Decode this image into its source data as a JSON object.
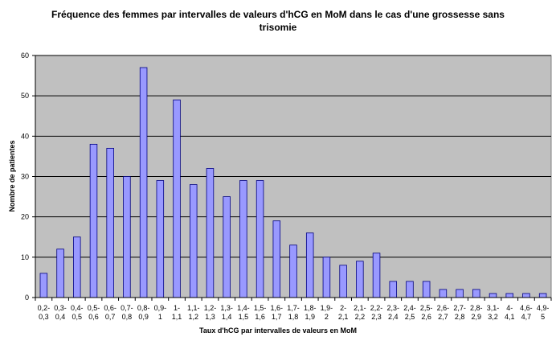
{
  "chart_data": {
    "type": "bar",
    "title_lines": [
      "Fréquence des femmes par intervalles de valeurs d'hCG en MoM dans le cas d'une grossesse sans",
      "trisomie"
    ],
    "xlabel": "Taux d'hCG par intervalles de valeurs en MoM",
    "ylabel": "Nombre de patientes",
    "ylim": [
      0,
      60
    ],
    "yticks": [
      "0",
      "10",
      "20",
      "30",
      "40",
      "50",
      "60"
    ],
    "grid": true,
    "legend": "none",
    "colors": {
      "bar": "#9999ff",
      "bar_stroke": "#000080",
      "plot_bg": "#c0c0c0",
      "grid": "#000000"
    },
    "categories": [
      [
        "0,2-",
        "0,3"
      ],
      [
        "0,3-",
        "0,4"
      ],
      [
        "0,4-",
        "0,5"
      ],
      [
        "0,5-",
        "0,6"
      ],
      [
        "0,6-",
        "0,7"
      ],
      [
        "0,7-",
        "0,8"
      ],
      [
        "0,8-",
        "0,9"
      ],
      [
        "0,9-",
        "1"
      ],
      [
        "1-",
        "1,1"
      ],
      [
        "1,1-",
        "1,2"
      ],
      [
        "1,2-",
        "1,3"
      ],
      [
        "1,3-",
        "1,4"
      ],
      [
        "1,4-",
        "1,5"
      ],
      [
        "1,5-",
        "1,6"
      ],
      [
        "1,6-",
        "1,7"
      ],
      [
        "1,7-",
        "1,8"
      ],
      [
        "1,8-",
        "1,9"
      ],
      [
        "1,9-",
        "2"
      ],
      [
        "2-",
        "2,1"
      ],
      [
        "2,1-",
        "2,2"
      ],
      [
        "2,2-",
        "2,3"
      ],
      [
        "2,3-",
        "2,4"
      ],
      [
        "2,4-",
        "2,5"
      ],
      [
        "2,5-",
        "2,6"
      ],
      [
        "2,6-",
        "2,7"
      ],
      [
        "2,7-",
        "2,8"
      ],
      [
        "2,8-",
        "2,9"
      ],
      [
        "3,1-",
        "3,2"
      ],
      [
        "4-",
        "4,1"
      ],
      [
        "4,6-",
        "4,7"
      ],
      [
        "4,9-",
        "5"
      ]
    ],
    "values": [
      6,
      12,
      15,
      38,
      37,
      30,
      57,
      29,
      49,
      28,
      32,
      25,
      29,
      29,
      19,
      13,
      16,
      10,
      8,
      9,
      11,
      4,
      4,
      4,
      2,
      2,
      2,
      1,
      1,
      1,
      1
    ]
  }
}
